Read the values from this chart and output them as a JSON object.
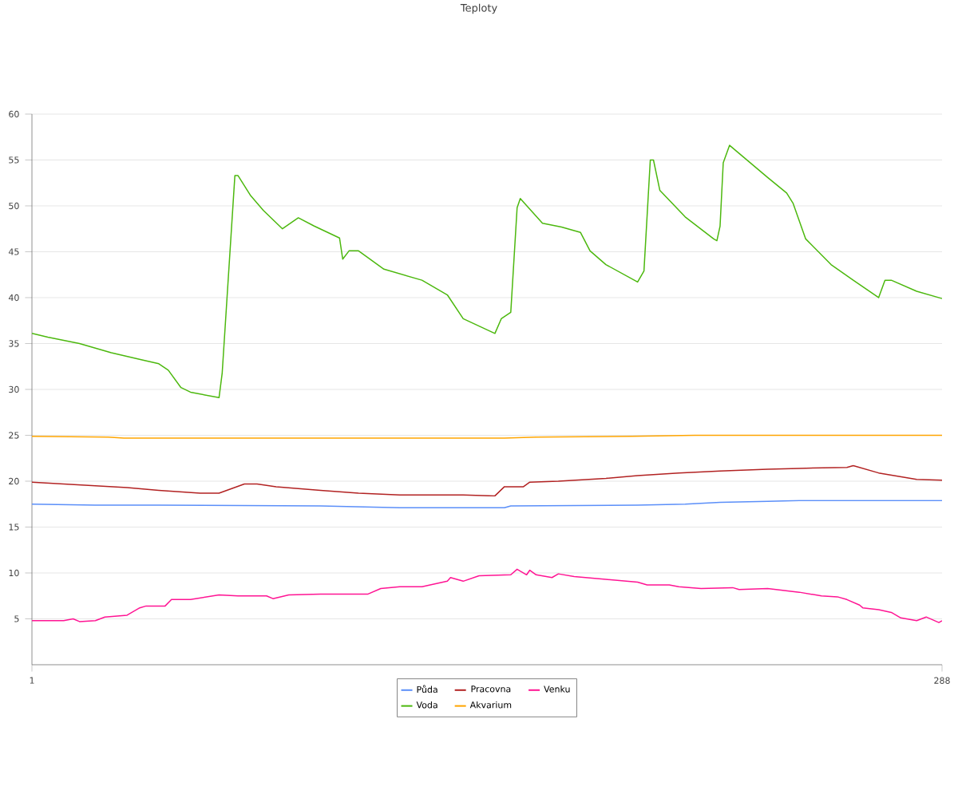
{
  "chart_data": {
    "type": "line",
    "title": "Teploty",
    "ylim": [
      0,
      60
    ],
    "yticks": [
      5,
      10,
      15,
      20,
      25,
      30,
      35,
      40,
      45,
      50,
      55,
      60
    ],
    "xlim": [
      1,
      288
    ],
    "xticks": [
      1,
      288
    ],
    "grid": "y",
    "legend": "bottom",
    "marker": "none",
    "line_style": "solid",
    "series": [
      {
        "name": "Půda",
        "color": "#5b8ff9",
        "x": [
          1,
          21,
          41,
          92,
          117,
          150,
          152,
          192,
          207,
          218,
          233,
          243,
          288
        ],
        "values": [
          17.5,
          17.4,
          17.4,
          17.3,
          17.1,
          17.1,
          17.3,
          17.4,
          17.5,
          17.7,
          17.8,
          17.9,
          17.9
        ]
      },
      {
        "name": "Voda",
        "color": "#4cb80e",
        "x": [
          1,
          6,
          16,
          26,
          36,
          41,
          44,
          48,
          51,
          60,
          61,
          65,
          66,
          70,
          74,
          80,
          85,
          90,
          98,
          99,
          101,
          104,
          112,
          124,
          132,
          137,
          147,
          149,
          152,
          154,
          155,
          162,
          168,
          174,
          177,
          182,
          192,
          194,
          196,
          197,
          199,
          207,
          216,
          217,
          218,
          219,
          221,
          233,
          239,
          241,
          245,
          253,
          260,
          268,
          270,
          272,
          280,
          288
        ],
        "values": [
          36.1,
          35.7,
          35.0,
          34.0,
          33.2,
          32.8,
          32.1,
          30.2,
          29.7,
          29.1,
          31.8,
          53.3,
          53.3,
          51.1,
          49.5,
          47.5,
          48.7,
          47.8,
          46.5,
          44.2,
          45.1,
          45.1,
          43.1,
          41.9,
          40.3,
          37.7,
          36.1,
          37.7,
          38.4,
          49.8,
          50.8,
          48.1,
          47.7,
          47.1,
          45.1,
          43.6,
          41.7,
          42.9,
          55.0,
          55.0,
          51.7,
          48.8,
          46.4,
          46.2,
          47.8,
          54.7,
          56.6,
          53.1,
          51.4,
          50.3,
          46.4,
          43.6,
          41.9,
          40.0,
          41.9,
          41.9,
          40.7,
          39.9
        ]
      },
      {
        "name": "Pracovna",
        "color": "#b22222",
        "x": [
          1,
          16,
          31,
          41,
          54,
          60,
          64,
          68,
          72,
          78,
          92,
          104,
          117,
          137,
          147,
          150,
          156,
          158,
          167,
          182,
          192,
          205,
          218,
          233,
          243,
          258,
          260,
          268,
          280,
          288
        ],
        "values": [
          19.9,
          19.6,
          19.3,
          19.0,
          18.7,
          18.7,
          19.2,
          19.7,
          19.7,
          19.4,
          19.0,
          18.7,
          18.5,
          18.5,
          18.4,
          19.4,
          19.4,
          19.9,
          20.0,
          20.3,
          20.6,
          20.9,
          21.1,
          21.3,
          21.4,
          21.5,
          21.7,
          20.9,
          20.2,
          20.1
        ]
      },
      {
        "name": "Akvarium",
        "color": "#ffa500",
        "x": [
          1,
          25,
          30,
          150,
          160,
          190,
          210,
          288
        ],
        "values": [
          24.9,
          24.8,
          24.7,
          24.7,
          24.8,
          24.9,
          25.0,
          25.0
        ]
      },
      {
        "name": "Venku",
        "color": "#ff1493",
        "x": [
          1,
          11,
          14,
          16,
          21,
          24,
          31,
          35,
          37,
          43,
          45,
          51,
          60,
          66,
          71,
          75,
          77,
          82,
          92,
          107,
          111,
          117,
          124,
          132,
          133,
          137,
          142,
          152,
          154,
          157,
          158,
          160,
          165,
          167,
          172,
          182,
          192,
          195,
          202,
          205,
          212,
          222,
          224,
          233,
          243,
          250,
          255,
          258,
          262,
          263,
          268,
          272,
          275,
          280,
          283,
          287,
          288
        ],
        "values": [
          4.8,
          4.8,
          5.0,
          4.7,
          4.8,
          5.2,
          5.4,
          6.2,
          6.4,
          6.4,
          7.1,
          7.1,
          7.6,
          7.5,
          7.5,
          7.5,
          7.2,
          7.6,
          7.7,
          7.7,
          8.3,
          8.5,
          8.5,
          9.1,
          9.5,
          9.1,
          9.7,
          9.8,
          10.4,
          9.8,
          10.3,
          9.8,
          9.5,
          9.9,
          9.6,
          9.3,
          9.0,
          8.7,
          8.7,
          8.5,
          8.3,
          8.4,
          8.2,
          8.3,
          7.9,
          7.5,
          7.4,
          7.1,
          6.5,
          6.2,
          6.0,
          5.7,
          5.1,
          4.8,
          5.2,
          4.6,
          4.8
        ]
      }
    ]
  }
}
